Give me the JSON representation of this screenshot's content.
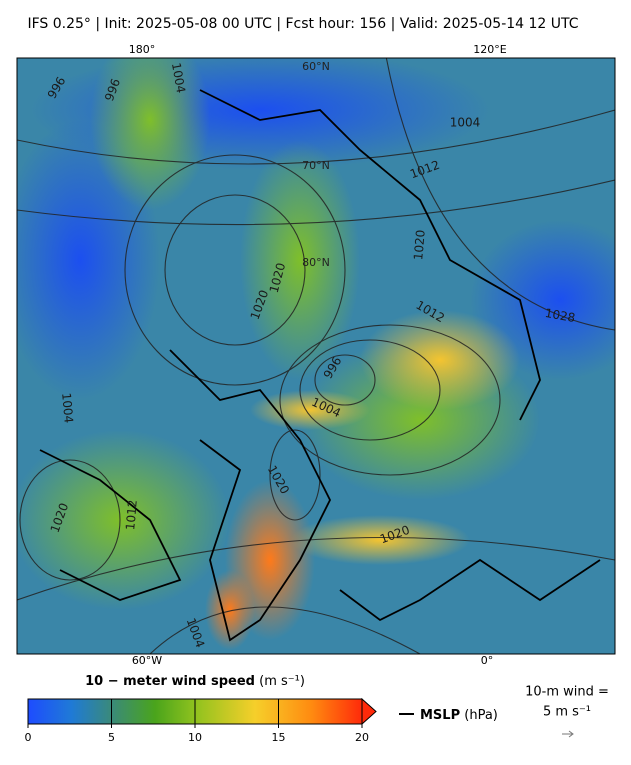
{
  "header": {
    "title": "IFS 0.25°  |  Init: 2025-05-08 00 UTC  |  Fcst hour: 156  |  Valid: 2025-05-14 12 UTC"
  },
  "map": {
    "lon_labels_top": [
      "180°",
      "120°E"
    ],
    "lon_labels_bottom": [
      "60°W",
      "0°"
    ],
    "lat_labels": [
      "60°N",
      "70°N",
      "80°N"
    ],
    "contour_labels": [
      "996",
      "996",
      "1004",
      "1004",
      "1012",
      "1020",
      "1028",
      "1012",
      "1020",
      "1020",
      "996",
      "1004",
      "1004",
      "1020",
      "1020",
      "1012",
      "1020",
      "1004"
    ]
  },
  "colorbar": {
    "label_bold": "10 − meter wind speed",
    "label_units": "(m s⁻¹)",
    "lim": [
      0,
      20
    ],
    "ticks": [
      0,
      5,
      10,
      15,
      20
    ]
  },
  "legend": {
    "mslp_bold": "MSLP",
    "mslp_units": "(hPa)",
    "wind_line1": "10-m wind =",
    "wind_line2": "5 m s⁻¹"
  }
}
